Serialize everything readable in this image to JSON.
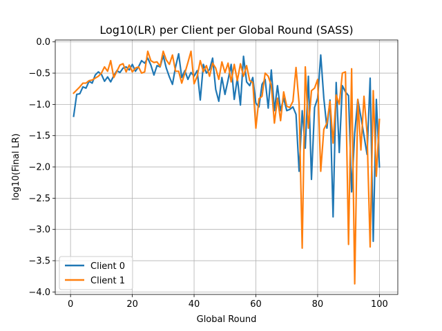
{
  "chart_data": {
    "type": "line",
    "title": "Log10(LR) per Client per Global Round (SASS)",
    "xlabel": "Global Round",
    "ylabel": "log10(Final LR)",
    "xlim": [
      -4.95,
      105.95
    ],
    "ylim": [
      -4.04,
      0.03
    ],
    "xticks": [
      0,
      20,
      40,
      60,
      80,
      100
    ],
    "yticks": [
      0.0,
      -0.5,
      -1.0,
      -1.5,
      -2.0,
      -2.5,
      -3.0,
      -3.5,
      -4.0
    ],
    "xtick_labels": [
      "0",
      "20",
      "40",
      "60",
      "80",
      "100"
    ],
    "ytick_labels": [
      "0.0",
      "−0.5",
      "−1.0",
      "−1.5",
      "−2.0",
      "−2.5",
      "−3.0",
      "−3.5",
      "−4.0"
    ],
    "grid": true,
    "legend_position": "lower-left",
    "x": [
      1,
      2,
      3,
      4,
      5,
      6,
      7,
      8,
      9,
      10,
      11,
      12,
      13,
      14,
      15,
      16,
      17,
      18,
      19,
      20,
      21,
      22,
      23,
      24,
      25,
      26,
      27,
      28,
      29,
      30,
      31,
      32,
      33,
      34,
      35,
      36,
      37,
      38,
      39,
      40,
      41,
      42,
      43,
      44,
      45,
      46,
      47,
      48,
      49,
      50,
      51,
      52,
      53,
      54,
      55,
      56,
      57,
      58,
      59,
      60,
      61,
      62,
      63,
      64,
      65,
      66,
      67,
      68,
      69,
      70,
      71,
      72,
      73,
      74,
      75,
      76,
      77,
      78,
      79,
      80,
      81,
      82,
      83,
      84,
      85,
      86,
      87,
      88,
      89,
      90,
      91,
      92,
      93,
      94,
      95,
      96,
      97,
      98,
      99,
      100
    ],
    "series": [
      {
        "name": "Client 0",
        "color": "#1f77b4",
        "values": [
          -1.19,
          -0.84,
          -0.83,
          -0.72,
          -0.74,
          -0.63,
          -0.66,
          -0.53,
          -0.48,
          -0.52,
          -0.63,
          -0.56,
          -0.64,
          -0.54,
          -0.46,
          -0.49,
          -0.42,
          -0.4,
          -0.45,
          -0.36,
          -0.47,
          -0.4,
          -0.3,
          -0.34,
          -0.26,
          -0.37,
          -0.53,
          -0.38,
          -0.4,
          -0.22,
          -0.42,
          -0.56,
          -0.68,
          -0.4,
          -0.19,
          -0.57,
          -0.46,
          -0.6,
          -0.49,
          -0.55,
          -0.46,
          -0.93,
          -0.36,
          -0.5,
          -0.44,
          -0.26,
          -0.76,
          -0.95,
          -0.57,
          -0.84,
          -0.61,
          -0.36,
          -0.92,
          -0.58,
          -1.01,
          -0.23,
          -0.64,
          -0.7,
          -0.57,
          -0.98,
          -1.04,
          -0.68,
          -0.6,
          -1.06,
          -0.45,
          -1.1,
          -0.7,
          -1.1,
          -0.9,
          -1.1,
          -1.08,
          -1.04,
          -1.16,
          -2.07,
          -1.1,
          -1.7,
          -0.55,
          -2.2,
          -1.05,
          -0.9,
          -0.21,
          -0.9,
          -1.38,
          -0.93,
          -2.8,
          -0.65,
          -1.77,
          -0.7,
          -0.8,
          -0.86,
          -2.4,
          -1.46,
          -0.92,
          -1.2,
          -1.5,
          -1.8,
          -0.58,
          -3.19,
          -0.92,
          -2.0
        ]
      },
      {
        "name": "Client 1",
        "color": "#ff7f0e",
        "values": [
          -0.82,
          -0.77,
          -0.72,
          -0.66,
          -0.66,
          -0.62,
          -0.61,
          -0.58,
          -0.55,
          -0.5,
          -0.4,
          -0.47,
          -0.3,
          -0.57,
          -0.47,
          -0.37,
          -0.35,
          -0.48,
          -0.37,
          -0.48,
          -0.42,
          -0.4,
          -0.5,
          -0.48,
          -0.15,
          -0.3,
          -0.33,
          -0.32,
          -0.39,
          -0.15,
          -0.29,
          -0.36,
          -0.21,
          -0.47,
          -0.47,
          -0.66,
          -0.5,
          -0.33,
          -0.15,
          -0.67,
          -0.55,
          -0.3,
          -0.48,
          -0.38,
          -0.55,
          -0.34,
          -0.42,
          -0.6,
          -0.32,
          -0.49,
          -0.34,
          -0.64,
          -0.36,
          -0.62,
          -0.35,
          -0.55,
          -0.38,
          -0.62,
          -0.65,
          -1.38,
          -0.91,
          -0.87,
          -0.5,
          -0.55,
          -0.7,
          -1.3,
          -0.9,
          -1.26,
          -0.8,
          -1.03,
          -1.05,
          -0.95,
          -0.41,
          -0.99,
          -3.3,
          -0.4,
          -1.38,
          -0.78,
          -0.74,
          -0.6,
          -2.07,
          -1.4,
          -1.3,
          -0.95,
          -1.62,
          -0.85,
          -1.0,
          -0.5,
          -0.48,
          -3.24,
          -0.43,
          -3.87,
          -0.92,
          -1.73,
          -0.87,
          -1.46,
          -3.28,
          -0.78,
          -2.15,
          -1.24
        ]
      }
    ]
  }
}
